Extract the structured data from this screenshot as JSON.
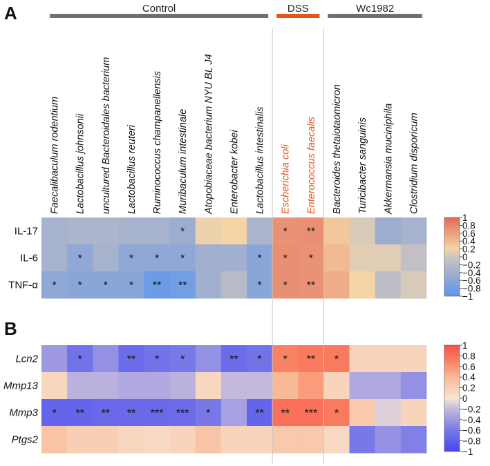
{
  "chart_data": {
    "type": "heatmap",
    "species": [
      "Faecalibaculum rodentium",
      "Lactobacillus johnsonii",
      "uncultured Bacteroidales bacterium",
      "Lactobacillus reuteri",
      "Ruminococcus champanellensis",
      "Muribaculum intestinale",
      "Atopobiaceae bacterium NYU BL J4",
      "Enterobacter kobei",
      "Lactobacillus intestinalis",
      "Escherichia coli",
      "Enterococcus faecalis",
      "Bacteroides thetaiotaomicron",
      "Turicibacter sanguinis",
      "Akkermansia muciniphila",
      "Clostridium disporicum"
    ],
    "highlighted_species": [
      "Escherichia coli",
      "Enterococcus faecalis"
    ],
    "groups": [
      {
        "label": "Control",
        "color": "#707070",
        "first": 0,
        "last": 8
      },
      {
        "label": "DSS",
        "color": "#e8531d",
        "first": 9,
        "last": 10
      },
      {
        "label": "Wc1982",
        "color": "#707070",
        "first": 11,
        "last": 14
      }
    ],
    "panels": [
      {
        "letter": "A",
        "rows": [
          "IL-17",
          "IL-6",
          "TNF-α"
        ],
        "row_style": "normal",
        "palette": "coolwarm",
        "colorbar_ticks": [
          "1",
          "0.8",
          "0.6",
          "0.4",
          "0.2",
          "0",
          "−0.2",
          "−0.4",
          "−0.6",
          "−0.8",
          "−1"
        ],
        "range": [
          -1,
          1
        ],
        "values": [
          [
            -0.35,
            -0.3,
            -0.3,
            -0.35,
            -0.35,
            -0.45,
            0.15,
            0.2,
            -0.3,
            0.7,
            0.72,
            0.3,
            0.05,
            -0.45,
            -0.35
          ],
          [
            -0.35,
            -0.55,
            -0.35,
            -0.55,
            -0.55,
            -0.55,
            -0.4,
            -0.4,
            -0.6,
            0.72,
            0.7,
            0.4,
            0.1,
            0.1,
            -0.1
          ],
          [
            -0.55,
            -0.6,
            -0.6,
            -0.6,
            -0.85,
            -0.8,
            -0.4,
            -0.2,
            -0.6,
            0.72,
            0.7,
            0.5,
            0.2,
            -0.15,
            0.05
          ]
        ],
        "stars": [
          [
            "",
            "",
            "",
            "",
            "",
            "*",
            "",
            "",
            "",
            "*",
            "**",
            "",
            "",
            "",
            ""
          ],
          [
            "",
            "*",
            "",
            "*",
            "*",
            "*",
            "",
            "",
            "*",
            "*",
            "*",
            "",
            "",
            "",
            ""
          ],
          [
            "*",
            "*",
            "*",
            "*",
            "**",
            "**",
            "",
            "",
            "*",
            "*",
            "**",
            "",
            "",
            "",
            ""
          ]
        ]
      },
      {
        "letter": "B",
        "rows": [
          "Lcn2",
          "Mmp13",
          "Mmp3",
          "Ptgs2"
        ],
        "row_style": "italic",
        "palette": "bwr",
        "colorbar_ticks": [
          "1",
          "0.8",
          "0.6",
          "0.4",
          "0.2",
          "0",
          "−0.2",
          "−0.4",
          "−0.6",
          "−0.8",
          "−1"
        ],
        "range": [
          -1,
          1
        ],
        "values": [
          [
            -0.4,
            -0.65,
            -0.45,
            -0.7,
            -0.65,
            -0.6,
            -0.45,
            -0.7,
            -0.65,
            0.7,
            0.75,
            0.75,
            0.15,
            0.15,
            0.15
          ],
          [
            0.12,
            -0.25,
            -0.25,
            -0.3,
            -0.3,
            -0.25,
            0.12,
            -0.2,
            -0.2,
            0.4,
            0.55,
            0.15,
            -0.3,
            -0.3,
            -0.45
          ],
          [
            -0.75,
            -0.75,
            -0.72,
            -0.72,
            -0.72,
            -0.7,
            -0.6,
            -0.35,
            -0.75,
            0.8,
            0.8,
            0.75,
            0.25,
            -0.1,
            0.15
          ],
          [
            0.3,
            0.2,
            0.2,
            0.12,
            0.1,
            0.15,
            0.3,
            0.15,
            0.15,
            0.25,
            0.25,
            0.1,
            -0.6,
            -0.45,
            -0.55
          ]
        ],
        "stars": [
          [
            "",
            "*",
            "",
            "**",
            "*",
            "*",
            "",
            "**",
            "*",
            "*",
            "**",
            "*",
            "",
            "",
            ""
          ],
          [
            "",
            "",
            "",
            "",
            "",
            "",
            "",
            "",
            "",
            "",
            "",
            "",
            "",
            "",
            ""
          ],
          [
            "*",
            "**",
            "**",
            "**",
            "***",
            "***",
            "*",
            "",
            "**",
            "**",
            "***",
            "*",
            "",
            "",
            ""
          ],
          [
            "",
            "",
            "",
            "",
            "",
            "",
            "",
            "",
            "",
            "",
            "",
            "",
            "",
            "",
            ""
          ]
        ]
      }
    ]
  },
  "colors": {
    "divider": "#c8c8c8",
    "highlight_text": "#e8531d",
    "text": "#111111"
  }
}
